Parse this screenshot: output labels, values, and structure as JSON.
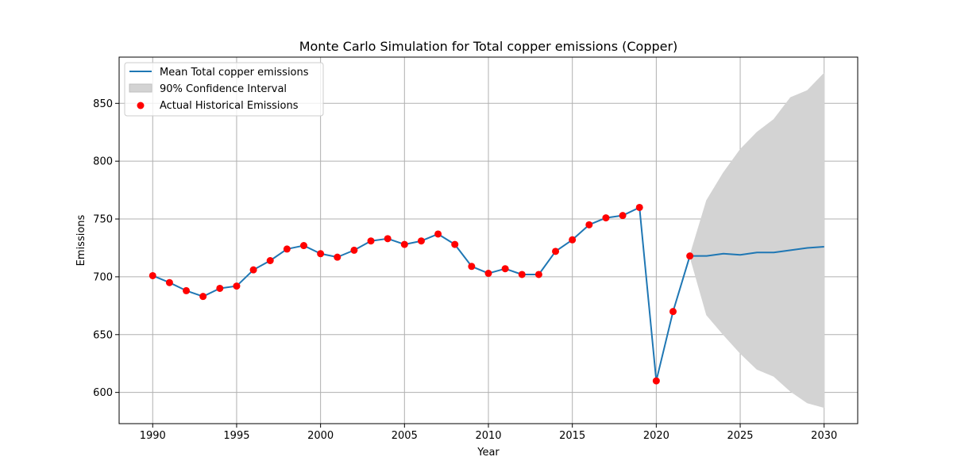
{
  "chart_data": {
    "type": "line",
    "title": "Monte Carlo Simulation for Total copper emissions (Copper)",
    "xlabel": "Year",
    "ylabel": "Emissions",
    "xlim": [
      1988,
      2032
    ],
    "ylim": [
      573,
      890
    ],
    "xticks": [
      1990,
      1995,
      2000,
      2005,
      2010,
      2015,
      2020,
      2025,
      2030
    ],
    "yticks": [
      600,
      650,
      700,
      750,
      800,
      850
    ],
    "grid": true,
    "legend_position": "top-left",
    "series": [
      {
        "name": "Mean Total copper emissions",
        "kind": "line",
        "color": "#1f77b4",
        "x": [
          1990,
          1991,
          1992,
          1993,
          1994,
          1995,
          1996,
          1997,
          1998,
          1999,
          2000,
          2001,
          2002,
          2003,
          2004,
          2005,
          2006,
          2007,
          2008,
          2009,
          2010,
          2011,
          2012,
          2013,
          2014,
          2015,
          2016,
          2017,
          2018,
          2019,
          2020,
          2021,
          2022,
          2023,
          2024,
          2025,
          2026,
          2027,
          2028,
          2029,
          2030
        ],
        "y": [
          701,
          695,
          688,
          683,
          690,
          692,
          706,
          714,
          724,
          727,
          720,
          717,
          723,
          731,
          733,
          728,
          731,
          737,
          728,
          709,
          703,
          707,
          702,
          702,
          722,
          732,
          745,
          751,
          753,
          760,
          610,
          670,
          718,
          718,
          720,
          719,
          721,
          721,
          723,
          725,
          726
        ]
      },
      {
        "name": "90% Confidence Interval",
        "kind": "band",
        "color": "#d3d3d3",
        "x": [
          2022,
          2023,
          2024,
          2025,
          2026,
          2027,
          2028,
          2029,
          2030
        ],
        "lower": [
          718,
          667,
          650,
          634,
          620,
          614,
          601,
          591,
          587
        ],
        "upper": [
          718,
          766,
          790,
          810,
          825,
          836,
          855,
          861,
          876
        ]
      },
      {
        "name": "Actual Historical Emissions",
        "kind": "scatter",
        "color": "#ff0000",
        "x": [
          1990,
          1991,
          1992,
          1993,
          1994,
          1995,
          1996,
          1997,
          1998,
          1999,
          2000,
          2001,
          2002,
          2003,
          2004,
          2005,
          2006,
          2007,
          2008,
          2009,
          2010,
          2011,
          2012,
          2013,
          2014,
          2015,
          2016,
          2017,
          2018,
          2019,
          2020,
          2021,
          2022
        ],
        "y": [
          701,
          695,
          688,
          683,
          690,
          692,
          706,
          714,
          724,
          727,
          720,
          717,
          723,
          731,
          733,
          728,
          731,
          737,
          728,
          709,
          703,
          707,
          702,
          702,
          722,
          732,
          745,
          751,
          753,
          760,
          610,
          670,
          718
        ]
      }
    ]
  }
}
